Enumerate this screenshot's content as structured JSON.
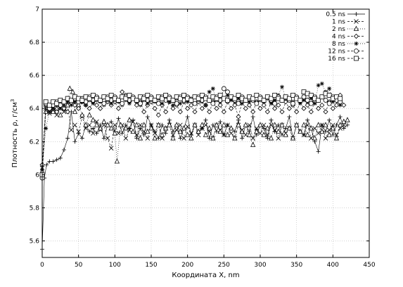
{
  "chart_data": {
    "type": "scatter",
    "xlabel": "Координата X, nm",
    "ylabel_main": "Плотность ρ, г/см",
    "ylabel_sup": "3",
    "xlim": [
      0,
      450
    ],
    "ylim": [
      5.5,
      7.0
    ],
    "xticks": [
      0,
      50,
      100,
      150,
      200,
      250,
      300,
      350,
      400,
      450
    ],
    "yticks": [
      5.6,
      5.8,
      6.0,
      6.2,
      6.4,
      6.6,
      6.8,
      7.0
    ],
    "xtick_labels": [
      "0",
      "50",
      "100",
      "150",
      "200",
      "250",
      "300",
      "350",
      "400",
      "450"
    ],
    "ytick_labels": [
      "5.6",
      "5.8",
      "6",
      "6.2",
      "6.4",
      "6.6",
      "6.8",
      "7"
    ],
    "grid": true,
    "legend_position": "top-right",
    "series": [
      {
        "name": "0.5 ns",
        "marker": "plus",
        "line": "solid",
        "x": [
          0,
          3,
          6,
          10,
          15,
          20,
          25,
          30,
          35,
          40,
          45,
          50,
          55,
          60,
          65,
          70,
          75,
          80,
          85,
          90,
          95,
          100,
          105,
          110,
          115,
          120,
          125,
          130,
          135,
          140,
          145,
          150,
          155,
          160,
          165,
          170,
          175,
          180,
          185,
          190,
          195,
          200,
          205,
          210,
          215,
          220,
          225,
          230,
          235,
          240,
          245,
          250,
          255,
          260,
          265,
          270,
          275,
          280,
          285,
          290,
          295,
          300,
          305,
          310,
          315,
          320,
          325,
          330,
          335,
          340,
          345,
          350,
          355,
          360,
          365,
          370,
          375,
          380,
          385,
          390,
          395,
          400,
          405,
          410,
          415,
          420
        ],
        "y": [
          5.55,
          5.98,
          6.06,
          6.08,
          6.08,
          6.09,
          6.1,
          6.15,
          6.22,
          6.38,
          6.2,
          6.25,
          6.22,
          6.3,
          6.26,
          6.28,
          6.25,
          6.3,
          6.22,
          6.3,
          6.32,
          6.26,
          6.34,
          6.25,
          6.3,
          6.28,
          6.33,
          6.22,
          6.28,
          6.24,
          6.35,
          6.3,
          6.26,
          6.22,
          6.3,
          6.25,
          6.33,
          6.26,
          6.3,
          6.22,
          6.28,
          6.35,
          6.24,
          6.3,
          6.26,
          6.28,
          6.33,
          6.22,
          6.3,
          6.26,
          6.32,
          6.24,
          6.3,
          6.28,
          6.26,
          6.33,
          6.22,
          6.3,
          6.26,
          6.35,
          6.24,
          6.3,
          6.28,
          6.22,
          6.33,
          6.26,
          6.3,
          6.24,
          6.28,
          6.35,
          6.22,
          6.3,
          6.26,
          6.24,
          6.33,
          6.28,
          6.2,
          6.14,
          6.3,
          6.26,
          6.33,
          6.24,
          6.3,
          6.35,
          6.28,
          6.3
        ]
      },
      {
        "name": "1 ns",
        "marker": "x",
        "line": "dashed",
        "x": [
          0,
          5,
          10,
          15,
          20,
          25,
          30,
          35,
          40,
          45,
          50,
          55,
          60,
          65,
          70,
          75,
          80,
          85,
          90,
          95,
          100,
          105,
          110,
          115,
          120,
          125,
          130,
          135,
          140,
          145,
          150,
          155,
          160,
          165,
          170,
          175,
          180,
          185,
          190,
          195,
          200,
          205,
          210,
          215,
          220,
          225,
          230,
          235,
          240,
          245,
          250,
          255,
          260,
          265,
          270,
          275,
          280,
          285,
          290,
          295,
          300,
          305,
          310,
          315,
          320,
          325,
          330,
          335,
          340,
          345,
          350,
          355,
          360,
          365,
          370,
          375,
          380,
          385,
          390,
          395,
          400,
          405,
          410,
          415
        ],
        "y": [
          6.04,
          6.4,
          6.37,
          6.38,
          6.36,
          6.4,
          6.38,
          6.42,
          6.27,
          6.3,
          6.26,
          6.35,
          6.28,
          6.3,
          6.25,
          6.32,
          6.27,
          6.3,
          6.22,
          6.16,
          6.3,
          6.25,
          6.3,
          6.22,
          6.27,
          6.32,
          6.24,
          6.3,
          6.26,
          6.22,
          6.3,
          6.25,
          6.3,
          6.22,
          6.28,
          6.3,
          6.24,
          6.27,
          6.3,
          6.22,
          6.29,
          6.25,
          6.3,
          6.24,
          6.28,
          6.3,
          6.26,
          6.22,
          6.3,
          6.27,
          6.24,
          6.3,
          6.25,
          6.22,
          6.3,
          6.27,
          6.24,
          6.3,
          6.22,
          6.28,
          6.25,
          6.3,
          6.24,
          6.3,
          6.27,
          6.22,
          6.3,
          6.25,
          6.28,
          6.22,
          6.3,
          6.26,
          6.24,
          6.3,
          6.22,
          6.28,
          6.25,
          6.3,
          6.22,
          6.27,
          6.3,
          6.24,
          6.28,
          6.3
        ]
      },
      {
        "name": "2 ns",
        "marker": "triangle",
        "line": "dotted",
        "x": [
          0,
          5,
          10,
          15,
          20,
          25,
          30,
          35,
          38,
          42,
          45,
          50,
          55,
          60,
          65,
          70,
          75,
          80,
          85,
          90,
          95,
          100,
          103,
          108,
          115,
          120,
          125,
          130,
          135,
          140,
          145,
          150,
          155,
          160,
          165,
          170,
          175,
          180,
          185,
          190,
          195,
          200,
          205,
          210,
          215,
          220,
          225,
          230,
          235,
          240,
          245,
          250,
          255,
          260,
          265,
          270,
          275,
          280,
          285,
          290,
          295,
          300,
          305,
          310,
          315,
          320,
          325,
          330,
          335,
          340,
          345,
          350,
          355,
          360,
          365,
          370,
          375,
          380,
          385,
          390,
          395,
          400,
          405,
          410,
          415,
          420
        ],
        "y": [
          6.02,
          6.38,
          6.4,
          6.38,
          6.4,
          6.36,
          6.4,
          6.42,
          6.52,
          6.5,
          6.38,
          6.42,
          6.36,
          6.3,
          6.36,
          6.33,
          6.3,
          6.28,
          6.32,
          6.3,
          6.28,
          6.25,
          6.08,
          6.3,
          6.28,
          6.33,
          6.26,
          6.3,
          6.22,
          6.3,
          6.26,
          6.28,
          6.22,
          6.3,
          6.24,
          6.28,
          6.3,
          6.22,
          6.3,
          6.26,
          6.28,
          6.24,
          6.22,
          6.3,
          6.26,
          6.3,
          6.24,
          6.28,
          6.22,
          6.3,
          6.26,
          6.3,
          6.24,
          6.28,
          6.22,
          6.3,
          6.26,
          6.3,
          6.24,
          6.18,
          6.26,
          6.3,
          6.24,
          6.28,
          6.22,
          6.3,
          6.26,
          6.3,
          6.24,
          6.28,
          6.22,
          6.3,
          6.26,
          6.3,
          6.24,
          6.28,
          6.22,
          6.3,
          6.26,
          6.3,
          6.24,
          6.28,
          6.22,
          6.3,
          6.32,
          6.33
        ]
      },
      {
        "name": "4 ns",
        "marker": "diamond",
        "line": "dashed",
        "x": [
          0,
          5,
          10,
          15,
          20,
          25,
          30,
          35,
          40,
          45,
          50,
          55,
          60,
          65,
          70,
          75,
          80,
          85,
          90,
          95,
          100,
          105,
          110,
          115,
          120,
          125,
          130,
          135,
          140,
          145,
          150,
          155,
          160,
          165,
          170,
          175,
          180,
          185,
          190,
          195,
          200,
          205,
          210,
          215,
          220,
          225,
          230,
          235,
          240,
          245,
          250,
          255,
          260,
          265,
          270,
          275,
          280,
          285,
          290,
          295,
          300,
          305,
          310,
          315,
          320,
          325,
          330,
          335,
          340,
          345,
          350,
          355,
          360,
          365,
          370,
          375,
          380,
          385,
          390,
          395,
          400,
          405,
          410,
          415
        ],
        "y": [
          6.06,
          6.42,
          6.38,
          6.4,
          6.38,
          6.42,
          6.4,
          6.38,
          6.44,
          6.42,
          6.4,
          6.44,
          6.42,
          6.4,
          6.44,
          6.42,
          6.4,
          6.47,
          6.44,
          6.42,
          6.44,
          6.4,
          6.5,
          6.48,
          6.44,
          6.46,
          6.42,
          6.44,
          6.38,
          6.42,
          6.44,
          6.4,
          6.36,
          6.42,
          6.38,
          6.44,
          6.4,
          6.42,
          6.38,
          6.44,
          6.4,
          6.42,
          6.38,
          6.44,
          6.4,
          6.42,
          6.38,
          6.44,
          6.4,
          6.42,
          6.38,
          6.44,
          6.4,
          6.42,
          6.35,
          6.44,
          6.4,
          6.42,
          6.38,
          6.44,
          6.4,
          6.42,
          6.38,
          6.44,
          6.4,
          6.42,
          6.38,
          6.44,
          6.4,
          6.42,
          6.38,
          6.44,
          6.4,
          6.42,
          6.38,
          6.44,
          6.4,
          6.42,
          6.38,
          6.44,
          6.4,
          6.42,
          6.48,
          6.42
        ]
      },
      {
        "name": "8 ns",
        "marker": "star",
        "line": "dotted",
        "x": [
          0,
          5,
          10,
          15,
          20,
          25,
          30,
          35,
          40,
          45,
          50,
          55,
          60,
          65,
          70,
          75,
          80,
          85,
          90,
          95,
          100,
          105,
          110,
          115,
          120,
          125,
          130,
          135,
          140,
          145,
          150,
          155,
          160,
          165,
          170,
          175,
          180,
          185,
          190,
          195,
          200,
          205,
          210,
          215,
          220,
          225,
          230,
          235,
          240,
          245,
          250,
          255,
          260,
          265,
          270,
          275,
          280,
          285,
          290,
          295,
          300,
          305,
          310,
          315,
          320,
          325,
          330,
          335,
          340,
          345,
          350,
          355,
          360,
          365,
          370,
          375,
          380,
          385,
          390,
          395,
          400,
          405,
          410
        ],
        "y": [
          6.03,
          6.28,
          6.38,
          6.4,
          6.42,
          6.4,
          6.42,
          6.44,
          6.42,
          6.44,
          6.46,
          6.44,
          6.42,
          6.45,
          6.43,
          6.45,
          6.44,
          6.42,
          6.45,
          6.43,
          6.45,
          6.44,
          6.42,
          6.45,
          6.43,
          6.46,
          6.44,
          6.42,
          6.45,
          6.43,
          6.45,
          6.44,
          6.46,
          6.43,
          6.45,
          6.44,
          6.42,
          6.46,
          6.43,
          6.45,
          6.44,
          6.46,
          6.43,
          6.45,
          6.44,
          6.42,
          6.5,
          6.52,
          6.45,
          6.44,
          6.46,
          6.48,
          6.45,
          6.44,
          6.46,
          6.43,
          6.45,
          6.44,
          6.46,
          6.43,
          6.45,
          6.44,
          6.46,
          6.43,
          6.45,
          6.48,
          6.53,
          6.46,
          6.45,
          6.44,
          6.46,
          6.43,
          6.45,
          6.44,
          6.46,
          6.43,
          6.54,
          6.55,
          6.5,
          6.52,
          6.44,
          6.46,
          6.42
        ]
      },
      {
        "name": "12 ns",
        "marker": "circle",
        "line": "dashed",
        "x": [
          0,
          5,
          10,
          15,
          20,
          25,
          30,
          35,
          40,
          45,
          50,
          55,
          60,
          65,
          70,
          75,
          80,
          85,
          90,
          95,
          100,
          105,
          110,
          115,
          120,
          125,
          130,
          135,
          140,
          145,
          150,
          155,
          160,
          165,
          170,
          175,
          180,
          185,
          190,
          195,
          200,
          205,
          210,
          215,
          220,
          225,
          230,
          235,
          240,
          245,
          250,
          255,
          260,
          265,
          270,
          275,
          280,
          285,
          290,
          295,
          300,
          305,
          310,
          315,
          320,
          325,
          330,
          335,
          340,
          345,
          350,
          355,
          360,
          365,
          370,
          375,
          380,
          385,
          390,
          395,
          400,
          405,
          410
        ],
        "y": [
          5.98,
          6.43,
          6.4,
          6.42,
          6.44,
          6.42,
          6.44,
          6.46,
          6.44,
          6.46,
          6.44,
          6.46,
          6.44,
          6.47,
          6.45,
          6.47,
          6.45,
          6.43,
          6.47,
          6.45,
          6.47,
          6.45,
          6.43,
          6.47,
          6.45,
          6.47,
          6.45,
          6.43,
          6.47,
          6.45,
          6.47,
          6.45,
          6.43,
          6.47,
          6.45,
          6.47,
          6.45,
          6.43,
          6.47,
          6.45,
          6.47,
          6.45,
          6.43,
          6.47,
          6.45,
          6.47,
          6.45,
          6.43,
          6.47,
          6.45,
          6.52,
          6.5,
          6.47,
          6.45,
          6.43,
          6.47,
          6.45,
          6.47,
          6.45,
          6.43,
          6.47,
          6.45,
          6.47,
          6.45,
          6.43,
          6.47,
          6.45,
          6.47,
          6.45,
          6.43,
          6.47,
          6.45,
          6.47,
          6.45,
          6.43,
          6.47,
          6.45,
          6.47,
          6.45,
          6.43,
          6.47,
          6.45,
          6.44
        ]
      },
      {
        "name": "16 ns",
        "marker": "square",
        "line": "dashed",
        "x": [
          0,
          5,
          10,
          15,
          20,
          25,
          30,
          35,
          40,
          45,
          50,
          55,
          60,
          65,
          70,
          75,
          80,
          85,
          90,
          95,
          100,
          105,
          110,
          115,
          120,
          125,
          130,
          135,
          140,
          145,
          150,
          155,
          160,
          165,
          170,
          175,
          180,
          185,
          190,
          195,
          200,
          205,
          210,
          215,
          220,
          225,
          230,
          235,
          240,
          245,
          250,
          255,
          260,
          265,
          270,
          275,
          280,
          285,
          290,
          295,
          300,
          305,
          310,
          315,
          320,
          325,
          330,
          335,
          340,
          345,
          350,
          355,
          360,
          365,
          370,
          375,
          380,
          385,
          390,
          395,
          400,
          405,
          410
        ],
        "y": [
          6.0,
          6.44,
          6.42,
          6.44,
          6.43,
          6.45,
          6.44,
          6.46,
          6.45,
          6.47,
          6.46,
          6.45,
          6.47,
          6.46,
          6.48,
          6.46,
          6.45,
          6.47,
          6.46,
          6.48,
          6.46,
          6.45,
          6.47,
          6.46,
          6.48,
          6.46,
          6.45,
          6.47,
          6.46,
          6.48,
          6.46,
          6.45,
          6.47,
          6.46,
          6.48,
          6.46,
          6.45,
          6.47,
          6.46,
          6.48,
          6.46,
          6.45,
          6.47,
          6.46,
          6.48,
          6.46,
          6.45,
          6.47,
          6.46,
          6.48,
          6.46,
          6.45,
          6.47,
          6.46,
          6.48,
          6.46,
          6.45,
          6.47,
          6.46,
          6.48,
          6.46,
          6.45,
          6.47,
          6.46,
          6.48,
          6.46,
          6.45,
          6.47,
          6.46,
          6.48,
          6.46,
          6.45,
          6.5,
          6.49,
          6.48,
          6.46,
          6.45,
          6.47,
          6.49,
          6.48,
          6.46,
          6.47,
          6.46
        ]
      }
    ]
  }
}
